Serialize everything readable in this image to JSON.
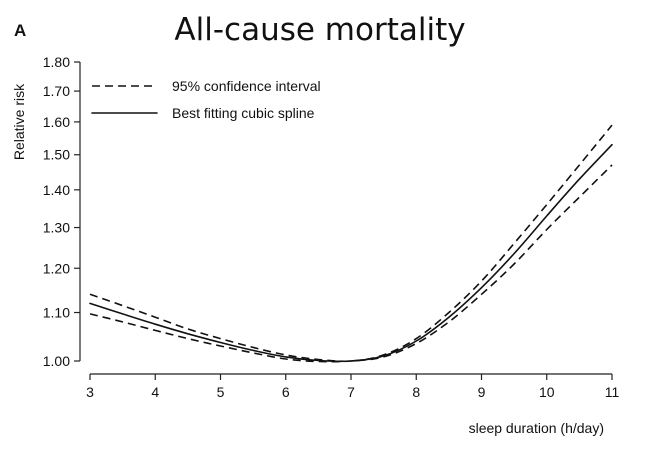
{
  "chart_data": {
    "type": "line",
    "panel_label": "A",
    "title": "All-cause mortality",
    "xlabel": "sleep duration (h/day)",
    "ylabel": "Relative risk",
    "xlim": [
      3,
      11
    ],
    "ylim": [
      1.0,
      1.8
    ],
    "y_scale": "log",
    "grid": false,
    "legend_position": "top-left",
    "x_ticks": [
      3,
      4,
      5,
      6,
      7,
      8,
      9,
      10,
      11
    ],
    "y_ticks": [
      "1.00",
      "1.10",
      "1.20",
      "1.30",
      "1.40",
      "1.50",
      "1.60",
      "1.70",
      "1.80"
    ],
    "legend": [
      {
        "label": "95% confidence interval",
        "style": "dashed"
      },
      {
        "label": "Best fitting cubic spline",
        "style": "solid"
      }
    ],
    "series": [
      {
        "style": "dashed",
        "x": [
          3,
          3.5,
          4,
          4.5,
          5,
          5.5,
          6,
          6.5,
          7,
          7.5,
          8,
          8.5,
          9,
          9.5,
          10,
          10.5,
          11
        ],
        "values": [
          1.14,
          1.115,
          1.09,
          1.065,
          1.045,
          1.027,
          1.012,
          1.003,
          1.0,
          1.012,
          1.045,
          1.1,
          1.17,
          1.26,
          1.36,
          1.47,
          1.59
        ]
      },
      {
        "style": "solid",
        "x": [
          3,
          3.5,
          4,
          4.5,
          5,
          5.5,
          6,
          6.5,
          7,
          7.5,
          8,
          8.5,
          9,
          9.5,
          10,
          10.5,
          11
        ],
        "values": [
          1.12,
          1.097,
          1.075,
          1.055,
          1.037,
          1.021,
          1.008,
          1.001,
          1.0,
          1.01,
          1.04,
          1.09,
          1.155,
          1.235,
          1.33,
          1.43,
          1.53
        ]
      },
      {
        "style": "dashed",
        "x": [
          3,
          3.5,
          4,
          4.5,
          5,
          5.5,
          6,
          6.5,
          7,
          7.5,
          8,
          8.5,
          9,
          9.5,
          10,
          10.5,
          11
        ],
        "values": [
          1.097,
          1.08,
          1.062,
          1.045,
          1.03,
          1.016,
          1.004,
          0.999,
          1.0,
          1.008,
          1.035,
          1.08,
          1.14,
          1.21,
          1.295,
          1.38,
          1.47
        ]
      }
    ]
  }
}
